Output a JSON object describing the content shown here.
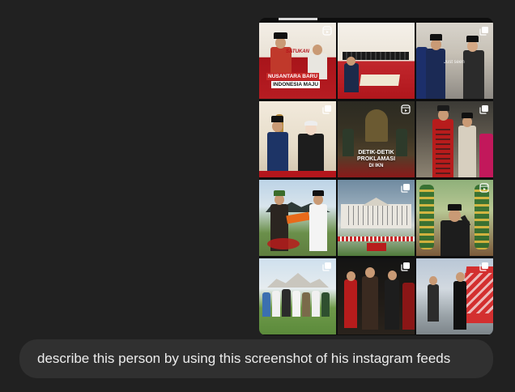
{
  "feed": {
    "tiles": [
      {
        "badge": "reel-icon",
        "caption_line1": "SATUKAN",
        "caption_line2": "NUSANTARA BARU",
        "caption_line3": "INDONESIA MAJU"
      },
      {
        "badge": "none"
      },
      {
        "badge": "carousel-icon",
        "watermark": "Just seen"
      },
      {
        "badge": "carousel-icon"
      },
      {
        "badge": "reel-icon",
        "caption_line1": "DETIK-DETIK",
        "caption_line2": "PROKLAMASI",
        "caption_line3": "DI IKN"
      },
      {
        "badge": "carousel-icon"
      },
      {
        "badge": "none"
      },
      {
        "badge": "carousel-icon"
      },
      {
        "badge": "reel-icon"
      },
      {
        "badge": "carousel-icon"
      },
      {
        "badge": "carousel-icon"
      },
      {
        "badge": "carousel-icon"
      }
    ]
  },
  "composer": {
    "message": "describe this person by using this screenshot of his instagram feeds"
  },
  "colors": {
    "page_bg": "#212121",
    "composer_bg": "#303030",
    "text": "#ececec"
  }
}
